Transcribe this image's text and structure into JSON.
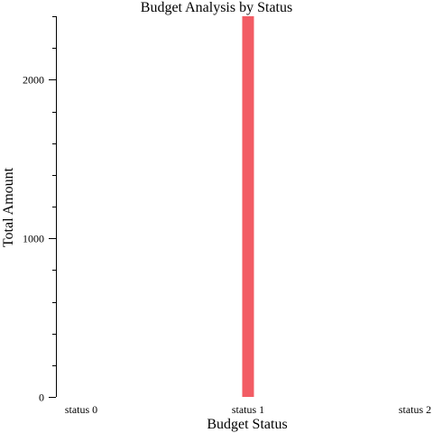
{
  "chart_data": {
    "type": "bar",
    "title": "Budget Analysis by Status",
    "xlabel": "Budget Status",
    "ylabel": "Total Amount",
    "categories": [
      "status 0",
      "status 1",
      "status 2"
    ],
    "values": [
      0,
      2400,
      0
    ],
    "ylim": [
      0,
      2400
    ],
    "yticks": [
      0,
      1000,
      2000
    ],
    "yminor_step": 200,
    "bar_color": "#f25c64",
    "grid": false,
    "legend": "none"
  }
}
